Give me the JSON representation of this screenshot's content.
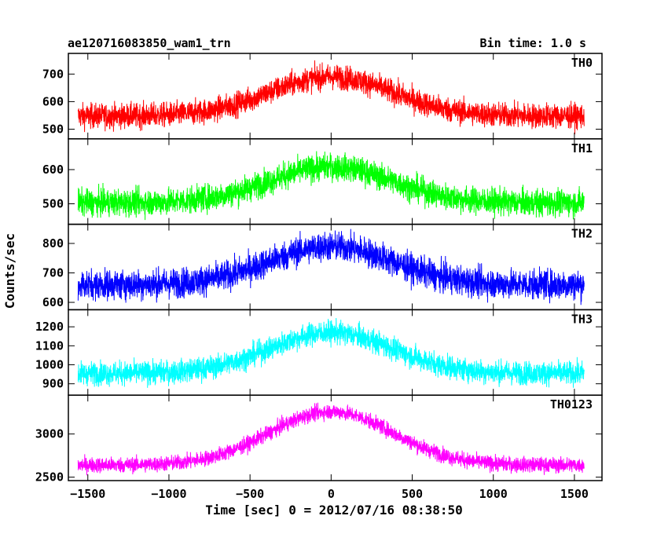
{
  "chart_data": {
    "type": "line",
    "title": "ae120716083850_wam1_trn",
    "subtitle": "Bin time: 1.0 s",
    "xlabel": "Time [sec] 0 = 2012/07/16 08:38:50",
    "ylabel": "Counts/sec",
    "xlim": [
      -1620,
      1670
    ],
    "x_ticks": [
      -1500,
      -1000,
      -500,
      0,
      500,
      1000,
      1500
    ],
    "x_tick_labels": [
      "−1500",
      "−1000",
      "−500",
      "0",
      "500",
      "1000",
      "1500"
    ],
    "x_range": [
      -1560,
      1560
    ],
    "series": [
      {
        "name": "TH0",
        "color": "#ff0000",
        "ylim": [
          465,
          775
        ],
        "yticks": [
          500,
          600,
          700
        ],
        "baseline": 548,
        "peak": 690,
        "noise": 40
      },
      {
        "name": "TH1",
        "color": "#00ff00",
        "ylim": [
          440,
          690
        ],
        "yticks": [
          500,
          600
        ],
        "baseline": 503,
        "peak": 608,
        "noise": 35
      },
      {
        "name": "TH2",
        "color": "#0000ff",
        "ylim": [
          575,
          865
        ],
        "yticks": [
          600,
          700,
          800
        ],
        "baseline": 660,
        "peak": 790,
        "noise": 45
      },
      {
        "name": "TH3",
        "color": "#00ffff",
        "ylim": [
          840,
          1290
        ],
        "yticks": [
          900,
          1000,
          1100,
          1200
        ],
        "baseline": 955,
        "peak": 1170,
        "noise": 55
      },
      {
        "name": "TH0123",
        "color": "#ff00ff",
        "ylim": [
          2460,
          3450
        ],
        "yticks": [
          2500,
          3000
        ],
        "baseline": 2640,
        "peak": 3260,
        "noise": 80
      }
    ]
  }
}
